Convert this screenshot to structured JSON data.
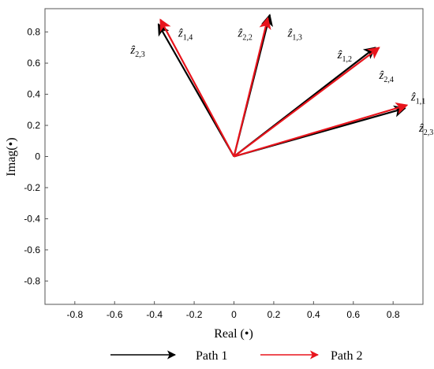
{
  "chart_data": {
    "type": "line",
    "xlabel": "Real (•)",
    "ylabel": "Imag(•)",
    "xlim": [
      -0.95,
      0.95
    ],
    "ylim": [
      -0.95,
      0.95
    ],
    "xticks": [
      -0.8,
      -0.6,
      -0.4,
      -0.2,
      0,
      0.2,
      0.4,
      0.6,
      0.8
    ],
    "yticks": [
      -0.8,
      -0.6,
      -0.4,
      -0.2,
      0,
      0.2,
      0.4,
      0.6,
      0.8
    ],
    "xtick_labels": [
      "-0.8",
      "-0.6",
      "-0.4",
      "-0.2",
      "0",
      "0.2",
      "0.4",
      "0.6",
      "0.8"
    ],
    "ytick_labels": [
      "-0.8",
      "-0.6",
      "-0.4",
      "-0.2",
      "0",
      "0.2",
      "0.4",
      "0.6",
      "0.8"
    ],
    "grid": false,
    "legend_position": "bottom",
    "series": [
      {
        "name": "Path 1",
        "color": "#000000",
        "vectors": [
          {
            "x": -0.38,
            "y": 0.85
          },
          {
            "x": 0.18,
            "y": 0.91
          },
          {
            "x": 0.71,
            "y": 0.7
          },
          {
            "x": 0.86,
            "y": 0.31
          }
        ]
      },
      {
        "name": "Path 2",
        "color": "#e8141c",
        "vectors": [
          {
            "x": -0.37,
            "y": 0.88
          },
          {
            "x": 0.17,
            "y": 0.89
          },
          {
            "x": 0.73,
            "y": 0.7
          },
          {
            "x": 0.87,
            "y": 0.33
          }
        ]
      }
    ],
    "annotations": [
      {
        "base": "ẑ",
        "sub": "2,3",
        "x": -0.52,
        "y": 0.66
      },
      {
        "base": "ẑ",
        "sub": "1,4",
        "x": -0.28,
        "y": 0.77
      },
      {
        "base": "ẑ",
        "sub": "2,2",
        "x": 0.02,
        "y": 0.77
      },
      {
        "base": "ẑ",
        "sub": "1,3",
        "x": 0.27,
        "y": 0.77
      },
      {
        "base": "ẑ",
        "sub": "1,2",
        "x": 0.52,
        "y": 0.63
      },
      {
        "base": "ẑ",
        "sub": "2,4",
        "x": 0.73,
        "y": 0.5
      },
      {
        "base": "ẑ",
        "sub": "1,1",
        "x": 0.89,
        "y": 0.36
      },
      {
        "base": "ẑ",
        "sub": "2,3",
        "x": 0.93,
        "y": 0.16
      }
    ]
  }
}
